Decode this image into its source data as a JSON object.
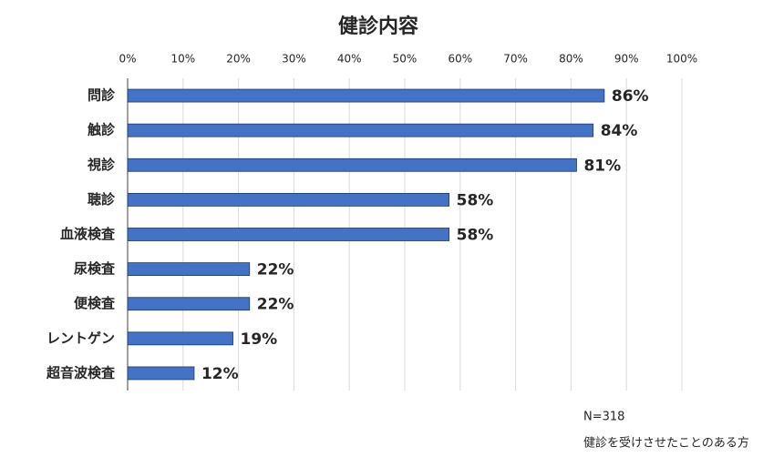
{
  "chart_data": {
    "type": "barh",
    "title": "健診内容",
    "categories": [
      "問診",
      "触診",
      "視診",
      "聴診",
      "血液検査",
      "尿検査",
      "便検査",
      "レントゲン",
      "超音波検査"
    ],
    "values": [
      86,
      84,
      81,
      58,
      58,
      22,
      22,
      19,
      12
    ],
    "value_labels": [
      "86%",
      "84%",
      "81%",
      "58%",
      "58%",
      "22%",
      "22%",
      "19%",
      "12%"
    ],
    "value_label_colors": [
      "#404040",
      "#404040",
      "#404040",
      "#404040",
      "#404040",
      "#ff0000",
      "#ff0000",
      "#ff0000",
      "#ff0000"
    ],
    "color": "#4472c4",
    "xlim": [
      0,
      100
    ],
    "xticks": [
      {
        "value": 0,
        "label": "0%"
      },
      {
        "value": 10,
        "label": "10%"
      },
      {
        "value": 20,
        "label": "20%"
      },
      {
        "value": 30,
        "label": "30%"
      },
      {
        "value": 40,
        "label": "40%"
      },
      {
        "value": 50,
        "label": "50%"
      },
      {
        "value": 60,
        "label": "60%"
      },
      {
        "value": 70,
        "label": "70%"
      },
      {
        "value": 80,
        "label": "80%"
      },
      {
        "value": 90,
        "label": "90%"
      },
      {
        "value": 100,
        "label": "100%"
      }
    ],
    "grid": true,
    "notes": [
      "N=318",
      "健診を受けさせたことのある方"
    ]
  }
}
